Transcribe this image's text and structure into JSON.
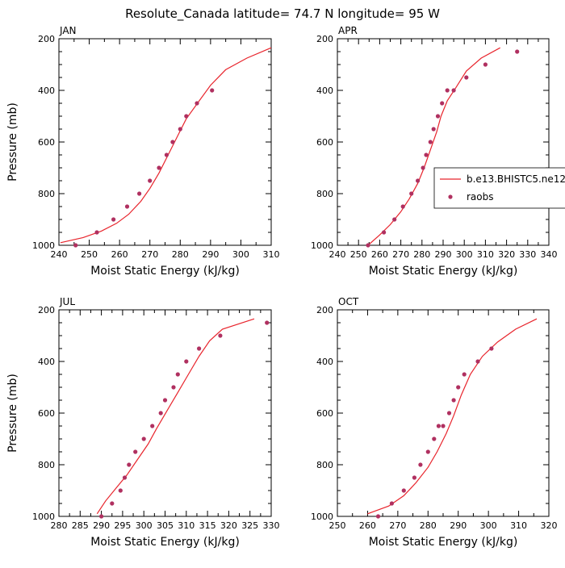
{
  "title": "Resolute_Canada  latitude= 74.7 N longitude= 95 W",
  "colors": {
    "model_line": "#e8242c",
    "obs_marker": "#b03060",
    "axis": "#000000"
  },
  "legend": {
    "position": "right",
    "entries": [
      {
        "label": "b.e13.BHISTC5.ne12",
        "style": "line",
        "color": "#e8242c"
      },
      {
        "label": "raobs",
        "style": "marker",
        "color": "#b03060"
      }
    ]
  },
  "chart_data": [
    {
      "type": "line",
      "panel_label": "JAN",
      "xlabel": "Moist Static Energy (kJ/kg)",
      "ylabel": "Pressure (mb)",
      "xlim": [
        240,
        310
      ],
      "ylim": [
        1000,
        200
      ],
      "xticks": [
        240,
        250,
        260,
        270,
        280,
        290,
        300,
        310
      ],
      "yticks": [
        200,
        400,
        600,
        800,
        1000
      ],
      "series": [
        {
          "name": "b.e13.BHISTC5.ne12",
          "style": "line",
          "x": [
            240.5,
            248,
            254,
            259,
            263,
            267,
            270,
            273,
            276,
            279,
            282,
            286,
            290,
            295,
            302,
            310
          ],
          "y": [
            990,
            970,
            945,
            915,
            880,
            830,
            780,
            720,
            650,
            580,
            510,
            445,
            380,
            320,
            275,
            235
          ]
        },
        {
          "name": "raobs",
          "style": "marker",
          "x": [
            245.5,
            252.5,
            258,
            262.5,
            266.5,
            270,
            273,
            275.5,
            277.5,
            280,
            282,
            285.5,
            290.5
          ],
          "y": [
            1000,
            950,
            900,
            850,
            800,
            750,
            700,
            650,
            600,
            550,
            500,
            450,
            400
          ]
        }
      ]
    },
    {
      "type": "line",
      "panel_label": "APR",
      "xlabel": "Moist Static Energy (kJ/kg)",
      "ylabel": "",
      "xlim": [
        240,
        340
      ],
      "ylim": [
        1000,
        200
      ],
      "xticks": [
        240,
        250,
        260,
        270,
        280,
        290,
        300,
        310,
        320,
        330,
        340
      ],
      "yticks": [
        200,
        400,
        600,
        800,
        1000
      ],
      "series": [
        {
          "name": "b.e13.BHISTC5.ne12",
          "style": "line",
          "x": [
            254.5,
            260,
            265,
            270,
            274,
            278,
            281,
            284,
            287,
            289,
            292,
            296,
            301,
            308,
            317
          ],
          "y": [
            1000,
            960,
            920,
            870,
            820,
            760,
            700,
            630,
            560,
            500,
            440,
            390,
            325,
            275,
            235
          ]
        },
        {
          "name": "raobs",
          "style": "marker",
          "x": [
            254.5,
            262,
            267,
            271,
            275,
            278,
            280.5,
            282,
            284,
            285.5,
            287.5,
            289.5,
            292,
            295,
            301,
            310,
            325
          ],
          "y": [
            1000,
            950,
            900,
            850,
            800,
            750,
            700,
            650,
            600,
            550,
            500,
            450,
            400,
            400,
            350,
            300,
            250
          ]
        }
      ]
    },
    {
      "type": "line",
      "panel_label": "JUL",
      "xlabel": "Moist Static Energy (kJ/kg)",
      "ylabel": "Pressure (mb)",
      "xlim": [
        280,
        330
      ],
      "ylim": [
        1000,
        200
      ],
      "xticks": [
        280,
        285,
        290,
        295,
        300,
        305,
        310,
        315,
        320,
        325,
        330
      ],
      "yticks": [
        200,
        400,
        600,
        800,
        1000
      ],
      "series": [
        {
          "name": "b.e13.BHISTC5.ne12",
          "style": "line",
          "x": [
            289,
            291,
            293.5,
            296,
            298.5,
            301,
            303,
            305.5,
            308,
            310.5,
            313,
            315.5,
            318.5,
            326
          ],
          "y": [
            990,
            940,
            890,
            840,
            780,
            720,
            660,
            590,
            520,
            450,
            380,
            320,
            275,
            235
          ]
        },
        {
          "name": "raobs",
          "style": "marker",
          "x": [
            290,
            292.5,
            294.5,
            295.5,
            296.5,
            298,
            300,
            302,
            304,
            305,
            307,
            308,
            310,
            313,
            318,
            329
          ],
          "y": [
            1000,
            950,
            900,
            850,
            800,
            750,
            700,
            650,
            600,
            550,
            500,
            450,
            400,
            350,
            300,
            250
          ]
        }
      ]
    },
    {
      "type": "line",
      "panel_label": "OCT",
      "xlabel": "Moist Static Energy (kJ/kg)",
      "ylabel": "",
      "xlim": [
        250,
        320
      ],
      "ylim": [
        1000,
        200
      ],
      "xticks": [
        250,
        260,
        270,
        280,
        290,
        300,
        310,
        320
      ],
      "yticks": [
        200,
        400,
        600,
        800,
        1000
      ],
      "series": [
        {
          "name": "b.e13.BHISTC5.ne12",
          "style": "line",
          "x": [
            260,
            267,
            272,
            276,
            280,
            283,
            286,
            288.5,
            291,
            294,
            298,
            303,
            309,
            316
          ],
          "y": [
            990,
            960,
            920,
            870,
            810,
            750,
            680,
            610,
            530,
            450,
            380,
            325,
            275,
            235
          ]
        },
        {
          "name": "raobs",
          "style": "marker",
          "x": [
            263.5,
            268,
            272,
            275.5,
            277.5,
            280,
            282,
            283.5,
            285,
            287,
            288.5,
            290,
            292,
            296.5,
            301
          ],
          "y": [
            1000,
            950,
            900,
            850,
            800,
            750,
            700,
            650,
            650,
            600,
            550,
            500,
            450,
            400,
            350
          ]
        }
      ]
    }
  ]
}
